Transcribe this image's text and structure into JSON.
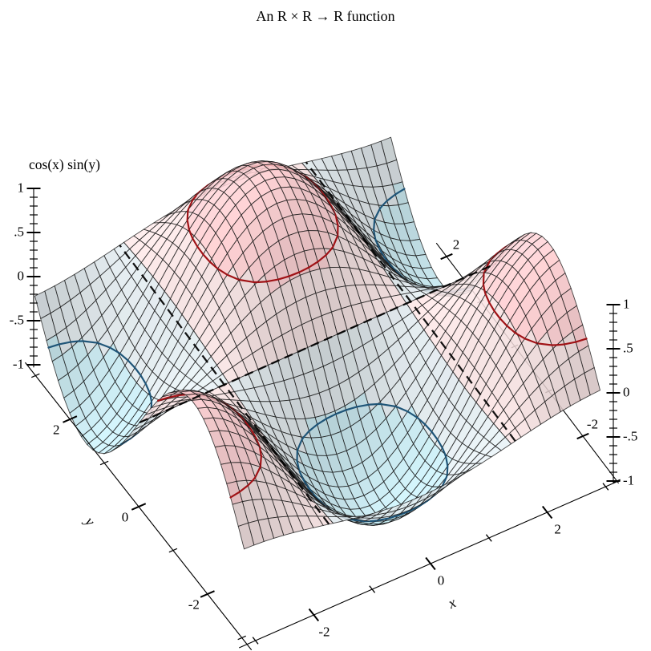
{
  "title": "An R × R → R function",
  "chart_data": {
    "type": "surface3d",
    "title": "An R × R → R function",
    "function": "cos(x) sin(y)",
    "x_label": "x",
    "y_label": "y",
    "z_label": "cos(x) sin(y)",
    "x_range": [
      -3,
      3
    ],
    "y_range": [
      -3,
      3
    ],
    "z_range": [
      -1,
      1
    ],
    "grid_cells": 36,
    "x_ticks": {
      "major": [
        -2,
        0,
        2
      ],
      "major_labels": [
        "-2",
        "0",
        "2"
      ],
      "minor": [
        -3,
        -1,
        1,
        3
      ]
    },
    "y_ticks": {
      "major": [
        2,
        0,
        -2
      ],
      "major_labels": [
        "2",
        "0",
        "-2"
      ],
      "minor": [
        3,
        1,
        -1,
        -3
      ]
    },
    "y_far_ticks": {
      "major": [
        2,
        -2
      ],
      "major_labels": [
        "2",
        "-2"
      ],
      "minor": [
        1,
        0,
        -1,
        -3
      ]
    },
    "z_ticks": {
      "major": [
        1,
        0.5,
        0,
        -0.5,
        -1
      ],
      "major_labels": [
        "1",
        ".5",
        "0",
        "-.5",
        "-1"
      ],
      "minor_step": 0.1
    },
    "contours": [
      {
        "level": 0.5,
        "color": "#a01216",
        "style": "solid"
      },
      {
        "level": -0.5,
        "color": "#1f5578",
        "style": "solid"
      },
      {
        "level": 0,
        "color": "#000000",
        "style": "dashed"
      }
    ],
    "bands": [
      {
        "range": [
          0.5,
          1
        ],
        "color": "#f0bfc2"
      },
      {
        "range": [
          0,
          0.5
        ],
        "color": "#e8d3d3"
      },
      {
        "range": [
          -0.5,
          0
        ],
        "color": "#d2dbdf"
      },
      {
        "range": [
          -1,
          -0.5
        ],
        "color": "#b9dce4"
      }
    ],
    "grid_color": "#141414",
    "axis_color": "#000000",
    "background": "#ffffff"
  }
}
